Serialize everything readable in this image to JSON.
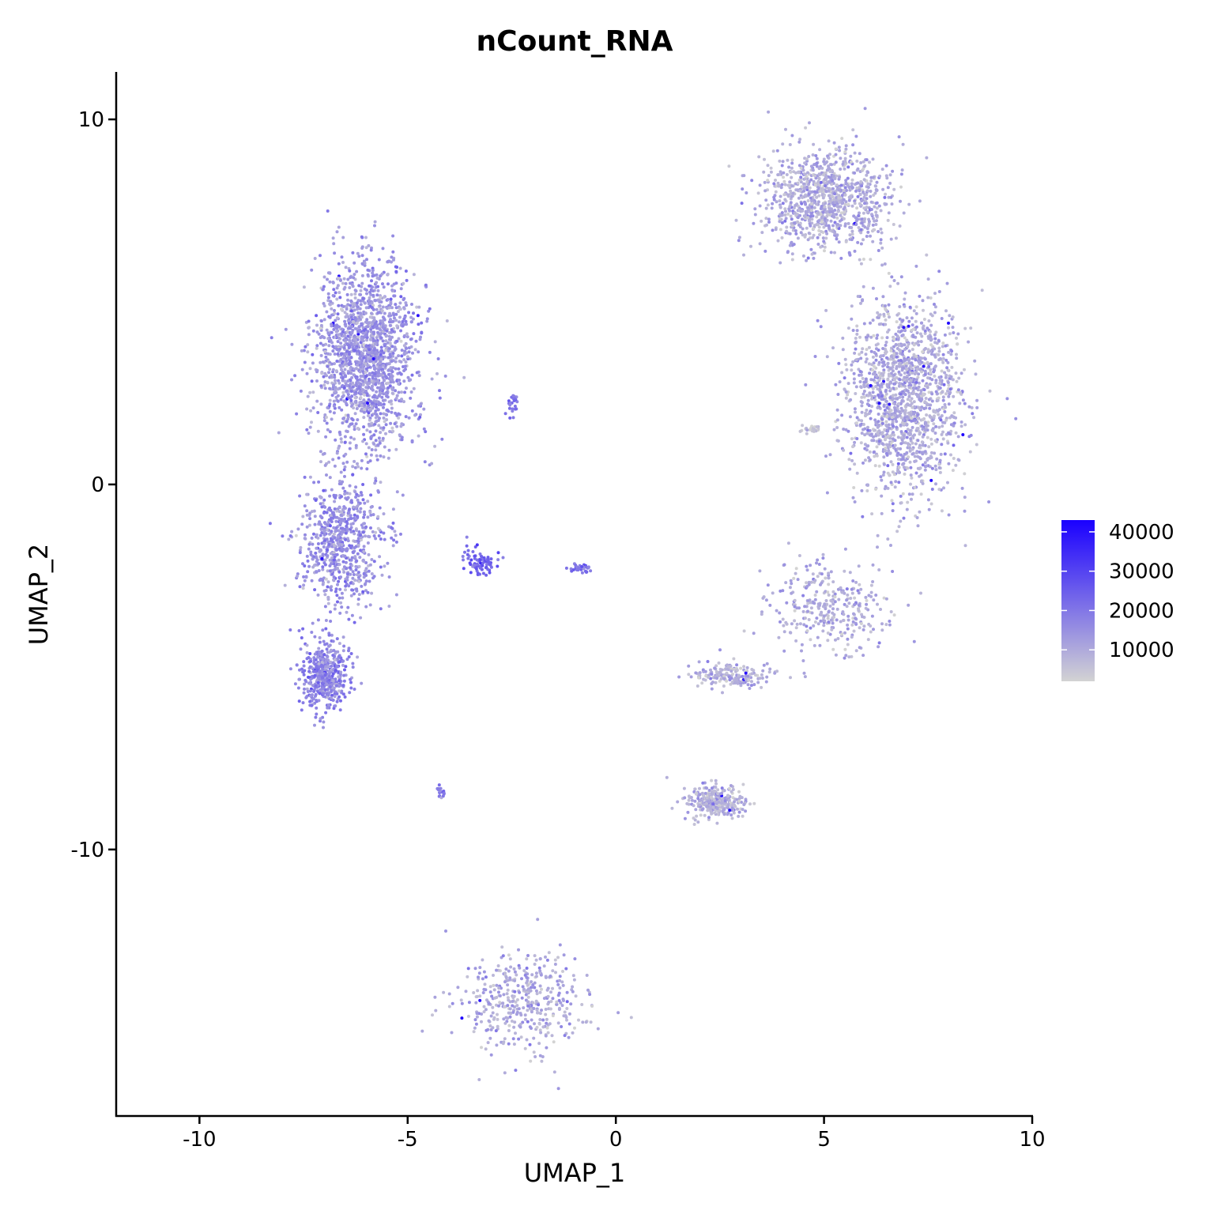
{
  "chart_data": {
    "type": "scatter",
    "title": "nCount_RNA",
    "xlabel": "UMAP_1",
    "ylabel": "UMAP_2",
    "xlim": [
      -12,
      10
    ],
    "ylim": [
      -17.3,
      11.3
    ],
    "x_ticks": [
      -10,
      -5,
      0,
      5,
      10
    ],
    "y_ticks": [
      10,
      0,
      -10
    ],
    "x_tick_labels": [
      "-10",
      "-5",
      "0",
      "5",
      "10"
    ],
    "y_tick_labels": [
      "10",
      "0",
      "-10"
    ],
    "grid": false,
    "legend": {
      "position": "right",
      "variable": "nCount_RNA",
      "range": [
        2000,
        43000
      ],
      "breaks": [
        40000,
        30000,
        20000,
        10000
      ],
      "labels": [
        "40000",
        "30000",
        "20000",
        "10000"
      ],
      "low_color": "#d3d3d3",
      "high_color": "#1a00ff"
    },
    "clusters": [
      {
        "name": "left-large-upper",
        "center": [
          -6.0,
          3.5
        ],
        "spread": [
          1.1,
          2.3
        ],
        "count": 1700,
        "mean_value": 14000
      },
      {
        "name": "left-large-mid",
        "center": [
          -6.6,
          -1.5
        ],
        "spread": [
          0.9,
          1.6
        ],
        "count": 700,
        "mean_value": 15000
      },
      {
        "name": "left-large-lower",
        "center": [
          -7.0,
          -5.2
        ],
        "spread": [
          0.5,
          0.9
        ],
        "count": 450,
        "mean_value": 17000
      },
      {
        "name": "top-right",
        "center": [
          5.0,
          7.8
        ],
        "spread": [
          1.4,
          1.2
        ],
        "count": 1000,
        "mean_value": 10000
      },
      {
        "name": "right-large",
        "center": [
          6.9,
          2.3
        ],
        "spread": [
          1.3,
          2.4
        ],
        "count": 1500,
        "mean_value": 10000
      },
      {
        "name": "right-arm",
        "center": [
          5.1,
          -3.4
        ],
        "spread": [
          1.3,
          1.1
        ],
        "count": 320,
        "mean_value": 9000
      },
      {
        "name": "right-arm-left",
        "center": [
          2.8,
          -5.2
        ],
        "spread": [
          0.9,
          0.35
        ],
        "count": 180,
        "mean_value": 9000
      },
      {
        "name": "bottom-right",
        "center": [
          2.4,
          -8.7
        ],
        "spread": [
          0.6,
          0.4
        ],
        "count": 320,
        "mean_value": 8500
      },
      {
        "name": "bottom-ring",
        "center": [
          -2.2,
          -14.2
        ],
        "spread": [
          1.4,
          1.2
        ],
        "count": 420,
        "mean_value": 10000
      },
      {
        "name": "small-purple-a",
        "center": [
          -3.3,
          -2.1
        ],
        "spread": [
          0.4,
          0.35
        ],
        "count": 80,
        "mean_value": 24000
      },
      {
        "name": "small-purple-b",
        "center": [
          -0.9,
          -2.3
        ],
        "spread": [
          0.25,
          0.1
        ],
        "count": 40,
        "mean_value": 20000
      },
      {
        "name": "small-purple-c",
        "center": [
          -2.5,
          2.2
        ],
        "spread": [
          0.15,
          0.3
        ],
        "count": 25,
        "mean_value": 20000
      },
      {
        "name": "small-purple-d",
        "center": [
          -4.2,
          -8.4
        ],
        "spread": [
          0.1,
          0.25
        ],
        "count": 20,
        "mean_value": 20000
      },
      {
        "name": "grey-small",
        "center": [
          4.7,
          1.5
        ],
        "spread": [
          0.2,
          0.1
        ],
        "count": 30,
        "mean_value": 5000
      }
    ]
  }
}
